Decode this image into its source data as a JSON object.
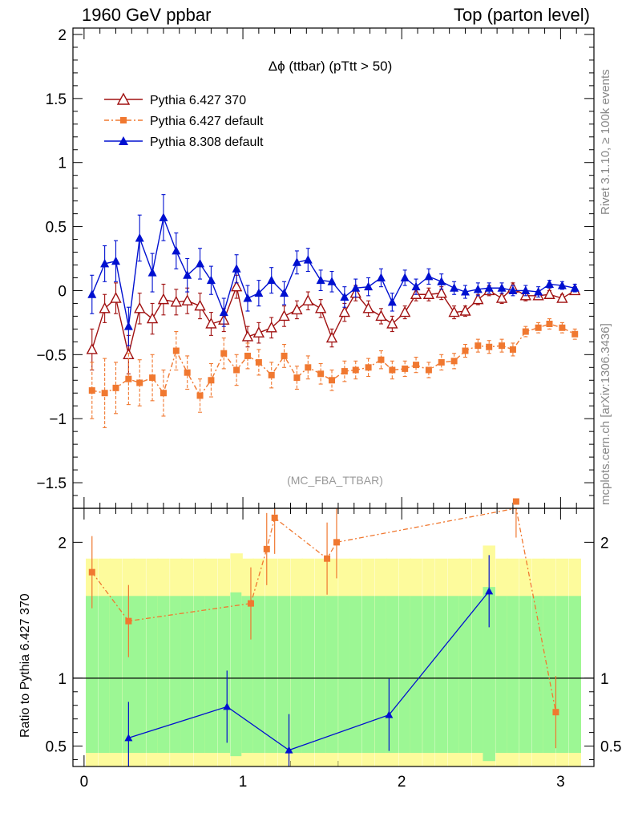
{
  "header": {
    "left": "1960 GeV ppbar",
    "right": "Top (parton level)"
  },
  "side_labels": {
    "rivet": "Rivet 3.1.10, ≥ 100k events",
    "mcplots": "mcplots.cern.ch [arXiv:1306.3436]"
  },
  "ratio_ylabel": "Ratio to Pythia 6.427 370",
  "analysis_tag": "(MC_FBA_TTBAR)",
  "chart_data": {
    "type": "line",
    "title": "Δϕ (ttbar) (pTtt > 50)",
    "xlim": [
      -0.07,
      3.21
    ],
    "ylim": [
      -1.7,
      2.05
    ],
    "ratio_ylim": [
      0.35,
      2.25
    ],
    "x_ticks": [
      0,
      1,
      2,
      3
    ],
    "y_ticks": [
      -1.5,
      -1,
      -0.5,
      0,
      0.5,
      1,
      1.5,
      2
    ],
    "y_tick_labels": [
      "−1.5",
      "−1",
      "−0.5",
      "0",
      "0.5",
      "1",
      "1.5",
      "2"
    ],
    "ratio_y_ticks": [
      0.5,
      1,
      2
    ],
    "x": [
      0.05,
      0.13,
      0.2,
      0.28,
      0.35,
      0.43,
      0.5,
      0.58,
      0.65,
      0.73,
      0.8,
      0.88,
      0.96,
      1.03,
      1.1,
      1.18,
      1.26,
      1.34,
      1.41,
      1.49,
      1.56,
      1.64,
      1.71,
      1.79,
      1.87,
      1.94,
      2.02,
      2.09,
      2.17,
      2.25,
      2.33,
      2.4,
      2.48,
      2.55,
      2.63,
      2.7,
      2.78,
      2.86,
      2.93,
      3.01,
      3.09
    ],
    "series": [
      {
        "name": "Pythia 6.427 370",
        "color": "#a01010",
        "marker": "open-triangle",
        "values": [
          -0.46,
          -0.14,
          -0.06,
          -0.5,
          -0.14,
          -0.22,
          -0.07,
          -0.09,
          -0.08,
          -0.12,
          -0.26,
          -0.23,
          0.03,
          -0.36,
          -0.33,
          -0.29,
          -0.2,
          -0.15,
          -0.08,
          -0.14,
          -0.37,
          -0.17,
          -0.02,
          -0.14,
          -0.2,
          -0.26,
          -0.17,
          -0.03,
          -0.03,
          -0.02,
          -0.17,
          -0.16,
          -0.07,
          0.0,
          -0.06,
          0.02,
          -0.04,
          -0.04,
          -0.03,
          -0.06,
          0.0
        ],
        "errors": [
          0.16,
          0.11,
          0.12,
          0.15,
          0.12,
          0.12,
          0.12,
          0.1,
          0.1,
          0.1,
          0.09,
          0.09,
          0.09,
          0.08,
          0.08,
          0.08,
          0.08,
          0.07,
          0.07,
          0.07,
          0.07,
          0.07,
          0.06,
          0.06,
          0.06,
          0.06,
          0.05,
          0.05,
          0.05,
          0.05,
          0.05,
          0.04,
          0.04,
          0.04,
          0.04,
          0.04,
          0.04,
          0.03,
          0.03,
          0.03,
          0.03
        ]
      },
      {
        "name": "Pythia 6.427 default",
        "color": "#f07830",
        "marker": "square",
        "values": [
          -0.78,
          -0.8,
          -0.76,
          -0.69,
          -0.72,
          -0.68,
          -0.8,
          -0.47,
          -0.64,
          -0.82,
          -0.7,
          -0.49,
          -0.62,
          -0.51,
          -0.56,
          -0.66,
          -0.51,
          -0.68,
          -0.6,
          -0.65,
          -0.7,
          -0.63,
          -0.62,
          -0.6,
          -0.54,
          -0.62,
          -0.61,
          -0.58,
          -0.62,
          -0.56,
          -0.55,
          -0.47,
          -0.43,
          -0.44,
          -0.43,
          -0.46,
          -0.32,
          -0.29,
          -0.26,
          -0.29,
          -0.34
        ],
        "errors": [
          0.22,
          0.27,
          0.2,
          0.2,
          0.18,
          0.18,
          0.18,
          0.15,
          0.13,
          0.13,
          0.13,
          0.12,
          0.12,
          0.1,
          0.1,
          0.1,
          0.09,
          0.09,
          0.09,
          0.08,
          0.08,
          0.08,
          0.07,
          0.07,
          0.07,
          0.07,
          0.06,
          0.06,
          0.06,
          0.06,
          0.06,
          0.05,
          0.05,
          0.05,
          0.05,
          0.05,
          0.04,
          0.04,
          0.04,
          0.04,
          0.04
        ]
      },
      {
        "name": "Pythia 8.308 default",
        "color": "#0010d0",
        "marker": "filled-triangle",
        "values": [
          -0.03,
          0.21,
          0.23,
          -0.28,
          0.41,
          0.14,
          0.57,
          0.31,
          0.12,
          0.21,
          0.08,
          -0.17,
          0.17,
          -0.06,
          -0.02,
          0.08,
          -0.02,
          0.22,
          0.24,
          0.08,
          0.07,
          -0.05,
          0.02,
          0.03,
          0.1,
          -0.09,
          0.1,
          0.03,
          0.11,
          0.07,
          0.02,
          -0.01,
          0.01,
          0.02,
          0.02,
          0.0,
          0.0,
          -0.01,
          0.05,
          0.04,
          0.02
        ],
        "errors": [
          0.15,
          0.14,
          0.16,
          0.15,
          0.18,
          0.15,
          0.18,
          0.14,
          0.13,
          0.12,
          0.11,
          0.11,
          0.11,
          0.1,
          0.1,
          0.1,
          0.09,
          0.09,
          0.09,
          0.08,
          0.08,
          0.08,
          0.07,
          0.07,
          0.07,
          0.07,
          0.06,
          0.06,
          0.06,
          0.06,
          0.05,
          0.05,
          0.05,
          0.04,
          0.04,
          0.04,
          0.04,
          0.04,
          0.03,
          0.03,
          0.03
        ]
      }
    ],
    "ratio": {
      "band_colors": {
        "inner": "#9cf794",
        "outer": "#fdfb9c"
      },
      "reference_line": 1,
      "series": [
        {
          "name": "Pythia 6.427 default",
          "x": [
            0.05,
            0.28,
            1.05,
            1.15,
            1.2,
            1.53,
            1.59,
            2.72,
            2.97
          ],
          "values": [
            1.78,
            1.42,
            1.55,
            1.95,
            2.18,
            1.88,
            2.0,
            2.3,
            0.75
          ]
        },
        {
          "name": "Pythia 8.308 default",
          "x": [
            0.28,
            0.9,
            1.29,
            1.92,
            2.55
          ],
          "values": [
            0.56,
            0.79,
            0.47,
            0.73,
            1.64
          ]
        }
      ]
    }
  }
}
